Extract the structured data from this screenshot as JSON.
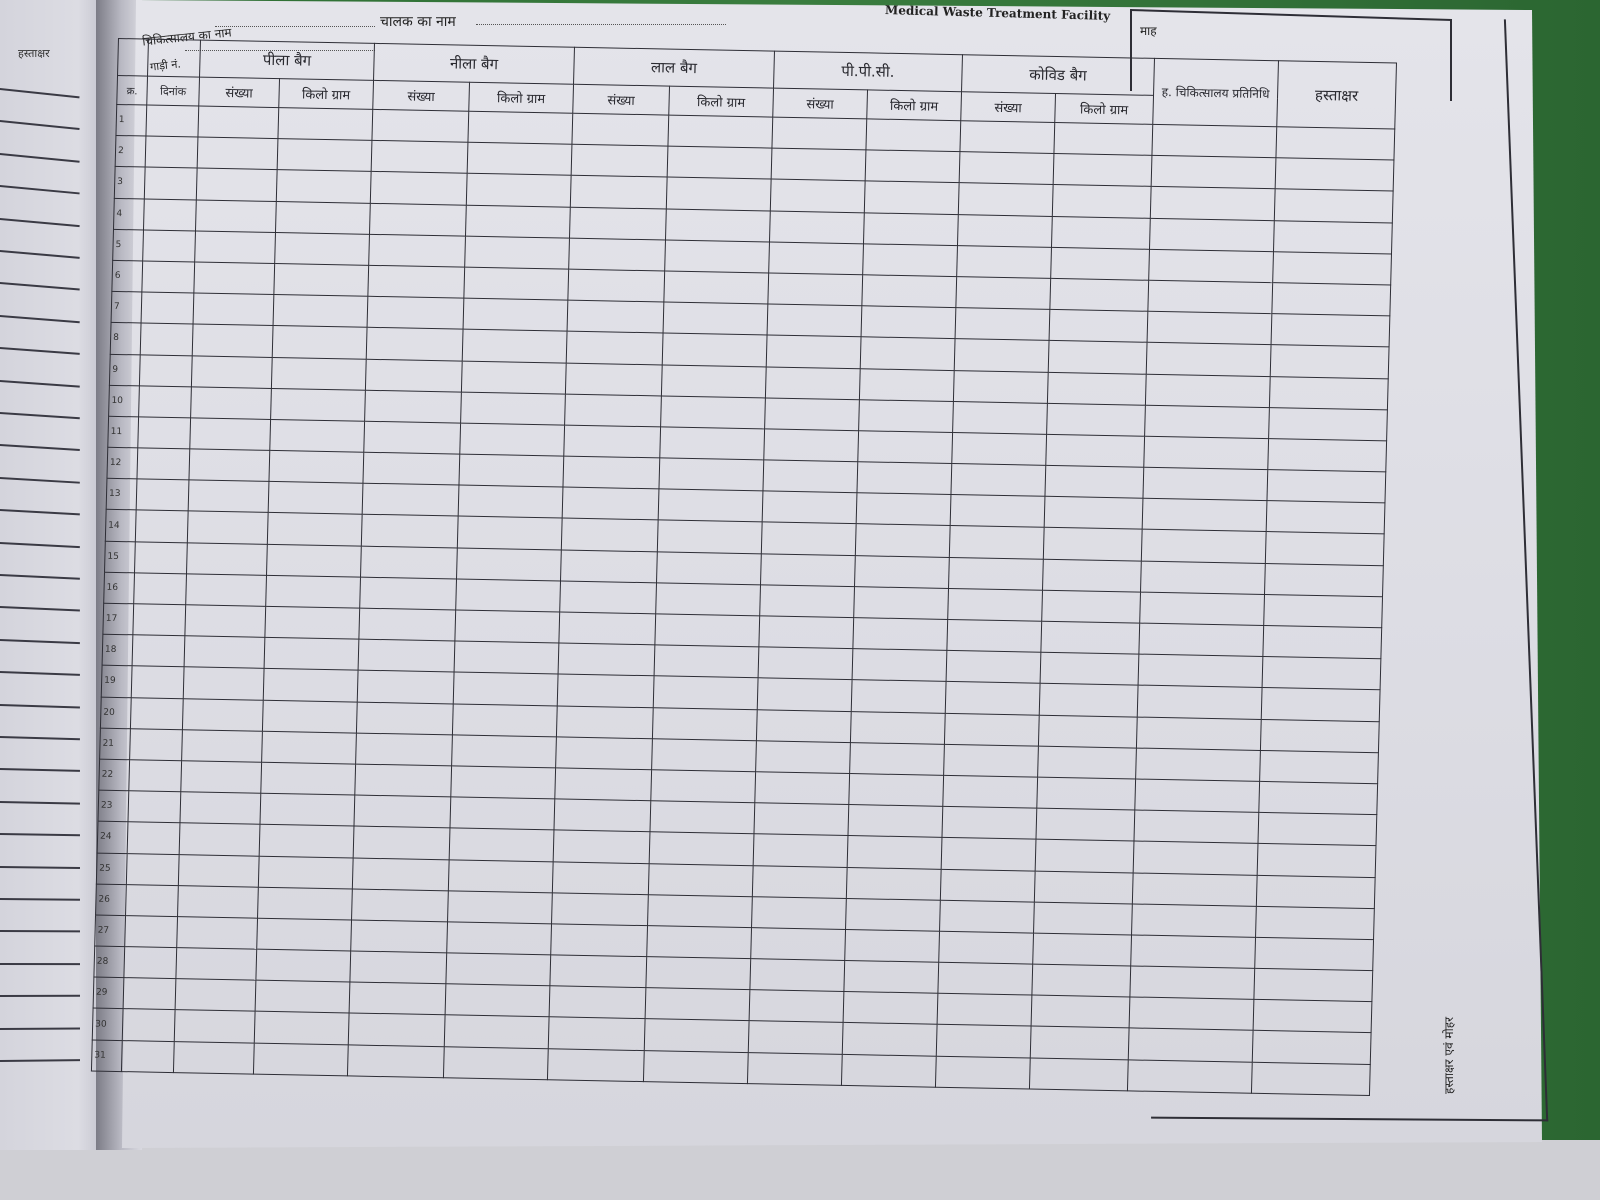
{
  "header": {
    "hospital_label": "चिकित्सालय का नाम",
    "driver_label": "चालक का नाम",
    "vehicle_label": "गाड़ी नं.",
    "facility_title": "Medical Waste Treatment Facility",
    "month_label": "माह"
  },
  "left_page": {
    "header": "हस्ताक्षर"
  },
  "columns": {
    "serial": "क्र.",
    "date": "दिनांक",
    "groups": [
      {
        "label": "पीला बैग"
      },
      {
        "label": "नीला बैग"
      },
      {
        "label": "लाल बैग"
      },
      {
        "label": "पी.पी.सी."
      },
      {
        "label": "कोविड बैग"
      }
    ],
    "count": "संख्या",
    "kilogram": "किलो ग्राम",
    "hospital_rep": "ह. चिकित्सालय प्रतिनिधि",
    "signature": "हस्ताक्षर"
  },
  "rows": [
    "1",
    "2",
    "3",
    "4",
    "5",
    "6",
    "7",
    "8",
    "9",
    "10",
    "11",
    "12",
    "13",
    "14",
    "15",
    "16",
    "17",
    "18",
    "19",
    "20",
    "21",
    "22",
    "23",
    "24",
    "25",
    "26",
    "27",
    "28",
    "29",
    "30",
    "31"
  ],
  "seal_label": "हस्ताक्षर एवं मोहर",
  "colors": {
    "ink": "#2e2e36",
    "paper": "#dcdce3",
    "background": "#2d6b34"
  }
}
